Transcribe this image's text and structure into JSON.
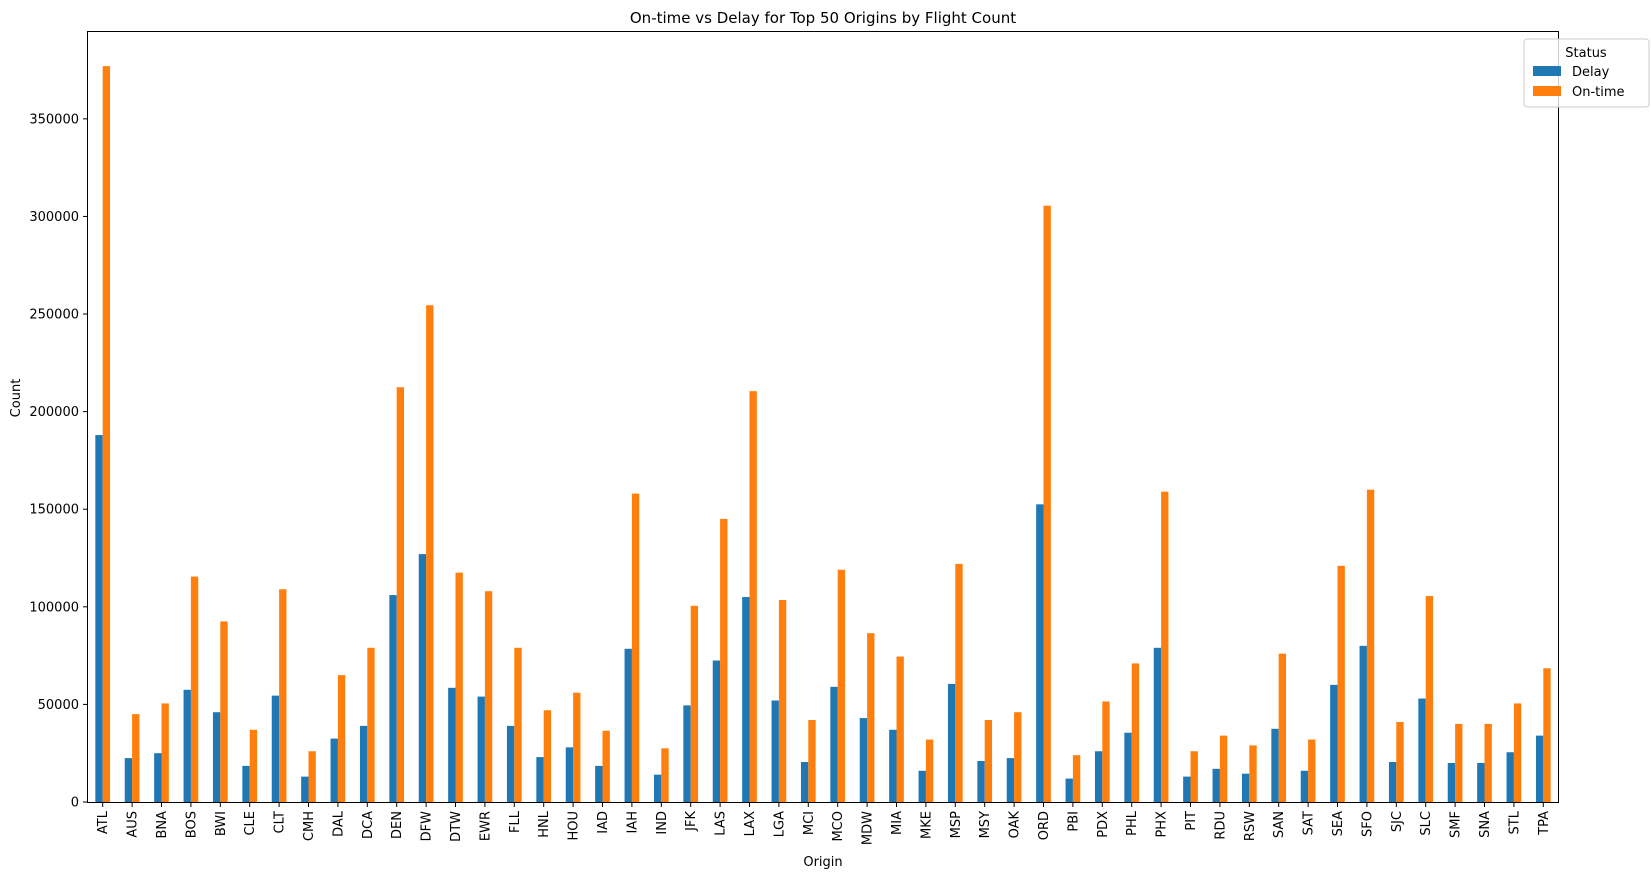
{
  "chart_data": {
    "type": "bar",
    "title": "On-time vs Delay for Top 50 Origins by Flight Count",
    "xlabel": "Origin",
    "ylabel": "Count",
    "ylim": [
      0,
      395000
    ],
    "yticks": [
      0,
      50000,
      100000,
      150000,
      200000,
      250000,
      300000,
      350000
    ],
    "grid": false,
    "legend": {
      "title": "Status",
      "position": "top-right"
    },
    "categories": [
      "ATL",
      "AUS",
      "BNA",
      "BOS",
      "BWI",
      "CLE",
      "CLT",
      "CMH",
      "DAL",
      "DCA",
      "DEN",
      "DFW",
      "DTW",
      "EWR",
      "FLL",
      "HNL",
      "HOU",
      "IAD",
      "IAH",
      "IND",
      "JFK",
      "LAS",
      "LAX",
      "LGA",
      "MCI",
      "MCO",
      "MDW",
      "MIA",
      "MKE",
      "MSP",
      "MSY",
      "OAK",
      "ORD",
      "PBI",
      "PDX",
      "PHL",
      "PHX",
      "PIT",
      "RDU",
      "RSW",
      "SAN",
      "SAT",
      "SEA",
      "SFO",
      "SJC",
      "SLC",
      "SMF",
      "SNA",
      "STL",
      "TPA"
    ],
    "series": [
      {
        "name": "Delay",
        "color": "#1f77b4",
        "values": [
          188000,
          22500,
          25000,
          57500,
          46000,
          18500,
          54500,
          13000,
          32500,
          39000,
          106000,
          127000,
          58500,
          54000,
          39000,
          23000,
          28000,
          18500,
          78500,
          14000,
          49500,
          72500,
          105000,
          52000,
          20500,
          59000,
          43000,
          37000,
          16000,
          60500,
          21000,
          22500,
          152500,
          12000,
          26000,
          35500,
          79000,
          13000,
          17000,
          14500,
          37500,
          16000,
          60000,
          80000,
          20500,
          53000,
          20000,
          20000,
          25500,
          34000
        ]
      },
      {
        "name": "On-time",
        "color": "#ff7f0e",
        "values": [
          377000,
          45000,
          50500,
          115500,
          92500,
          37000,
          109000,
          26000,
          65000,
          79000,
          212500,
          254500,
          117500,
          108000,
          79000,
          47000,
          56000,
          36500,
          158000,
          27500,
          100500,
          145000,
          210500,
          103500,
          42000,
          119000,
          86500,
          74500,
          32000,
          122000,
          42000,
          46000,
          305500,
          24000,
          51500,
          71000,
          159000,
          26000,
          34000,
          29000,
          76000,
          32000,
          121000,
          160000,
          41000,
          105500,
          40000,
          40000,
          50500,
          68500
        ]
      }
    ]
  }
}
